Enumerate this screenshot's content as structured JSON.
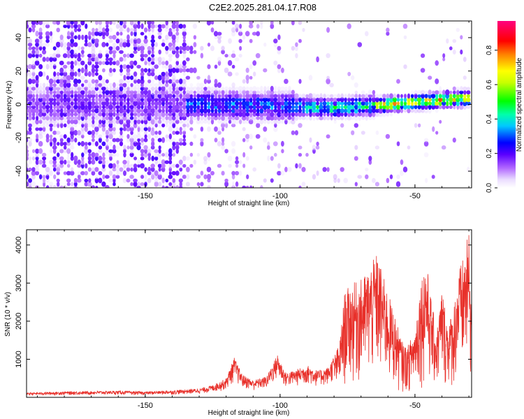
{
  "title": "C2E2.2025.281.04.17.R08",
  "colormap": [
    "#ffffff",
    "#e8d8ff",
    "#b066ff",
    "#6a00ff",
    "#0000ff",
    "#00ffff",
    "#00ff00",
    "#ffff00",
    "#ff8000",
    "#ff0000",
    "#ff00aa"
  ],
  "line_color": "#e8302a",
  "chart_data": [
    {
      "type": "heatmap",
      "title": "",
      "xlabel": "Height of straight line (km)",
      "ylabel": "Frequency (Hz)",
      "xlim": [
        -194,
        -29
      ],
      "ylim": [
        -50,
        50
      ],
      "xticks": [
        -150,
        -100,
        -50
      ],
      "yticks": [
        -40,
        -20,
        0,
        20,
        40
      ],
      "colorbar": {
        "label": "Normalized spectral amplitude",
        "range": [
          0,
          0.97
        ],
        "ticks": [
          0.0,
          0.2,
          0.4,
          0.6,
          0.8
        ]
      },
      "ridge": {
        "description_points": [
          [
            -160,
            0
          ],
          [
            -130,
            0
          ],
          [
            -100,
            -1
          ],
          [
            -80,
            -2
          ],
          [
            -60,
            0
          ],
          [
            -45,
            2
          ],
          [
            -30,
            4
          ]
        ],
        "peak_amplitude_region": [
          -65,
          -29
        ]
      }
    },
    {
      "type": "line",
      "title": "",
      "xlabel": "Height of straight line (km)",
      "ylabel": "SNR (10 * v/v)",
      "xlim": [
        -194,
        -29
      ],
      "ylim": [
        0,
        4400
      ],
      "xticks": [
        -150,
        -100,
        -50
      ],
      "yticks": [
        1000,
        2000,
        3000,
        4000
      ],
      "series": [
        {
          "envelope": [
            [
              -194,
              120
            ],
            [
              -180,
              150
            ],
            [
              -160,
              170
            ],
            [
              -150,
              150
            ],
            [
              -140,
              180
            ],
            [
              -130,
              230
            ],
            [
              -125,
              320
            ],
            [
              -120,
              500
            ],
            [
              -117,
              1050
            ],
            [
              -114,
              600
            ],
            [
              -110,
              450
            ],
            [
              -105,
              550
            ],
            [
              -101,
              1140
            ],
            [
              -98,
              650
            ],
            [
              -95,
              700
            ],
            [
              -90,
              850
            ],
            [
              -86,
              700
            ],
            [
              -82,
              800
            ],
            [
              -78,
              1400
            ],
            [
              -76,
              2800
            ],
            [
              -73,
              3000
            ],
            [
              -70,
              3100
            ],
            [
              -67,
              3400
            ],
            [
              -64,
              3800
            ],
            [
              -61,
              3000
            ],
            [
              -58,
              2300
            ],
            [
              -55,
              1500
            ],
            [
              -53,
              1300
            ],
            [
              -50,
              1800
            ],
            [
              -48,
              3000
            ],
            [
              -46,
              3700
            ],
            [
              -44,
              2600
            ],
            [
              -42,
              1700
            ],
            [
              -40,
              2900
            ],
            [
              -38,
              2000
            ],
            [
              -36,
              2200
            ],
            [
              -34,
              3300
            ],
            [
              -32,
              3700
            ],
            [
              -30,
              4350
            ],
            [
              -29,
              2500
            ]
          ]
        }
      ]
    }
  ]
}
